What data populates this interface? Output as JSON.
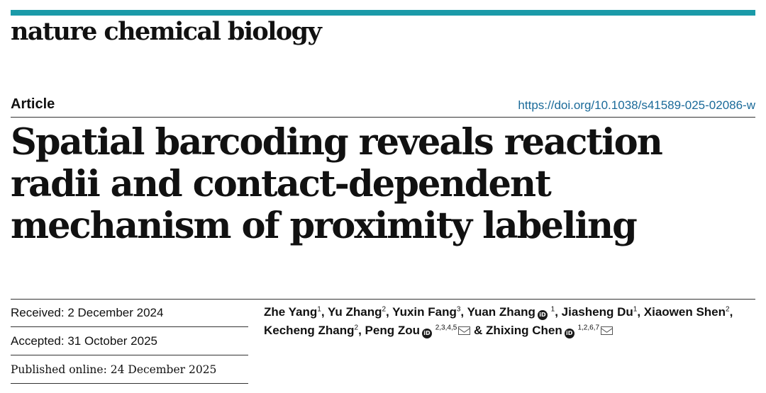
{
  "journal": {
    "name": "nature chemical biology",
    "accent_color": "#1a9aa8"
  },
  "article": {
    "type": "Article",
    "doi": "https://doi.org/10.1038/s41589-025-02086-w",
    "title": "Spatial barcoding reveals reaction radii and contact-dependent mechanism of proximity labeling"
  },
  "dates": {
    "received": "Received: 2 December 2024",
    "accepted": "Accepted: 31 October 2025",
    "published": "Published online: 24 December 2025"
  },
  "authors": [
    {
      "name": "Zhe Yang",
      "aff": "1",
      "orcid": false,
      "corresponding": false,
      "sep": ", "
    },
    {
      "name": "Yu Zhang",
      "aff": "2",
      "orcid": false,
      "corresponding": false,
      "sep": ", "
    },
    {
      "name": "Yuxin Fang",
      "aff": "3",
      "orcid": false,
      "corresponding": false,
      "sep": ", "
    },
    {
      "name": "Yuan Zhang",
      "aff": "1",
      "orcid": true,
      "corresponding": false,
      "sep": ", "
    },
    {
      "name": "Jiasheng Du",
      "aff": "1",
      "orcid": false,
      "corresponding": false,
      "sep": ", "
    },
    {
      "name": "Xiaowen Shen",
      "aff": "2",
      "orcid": false,
      "corresponding": false,
      "sep": ","
    },
    {
      "name": "Kecheng Zhang",
      "aff": "2",
      "orcid": false,
      "corresponding": false,
      "sep": ", "
    },
    {
      "name": "Peng Zou",
      "aff": "2,3,4,5",
      "orcid": true,
      "corresponding": true,
      "sep": " & "
    },
    {
      "name": "Zhixing Chen",
      "aff": "1,2,6,7",
      "orcid": true,
      "corresponding": true,
      "sep": ""
    }
  ],
  "icons": {
    "orcid": "orcid-icon",
    "corresponding": "envelope-icon"
  }
}
